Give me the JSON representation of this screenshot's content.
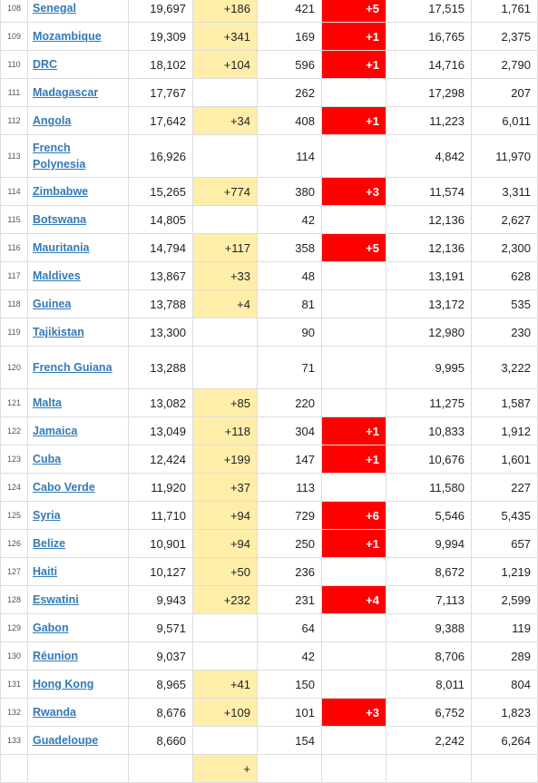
{
  "colors": {
    "new_cases_bg": "#FFEEAA",
    "new_deaths_bg": "#FF0000",
    "link": "#337ab7"
  },
  "rows": [
    {
      "rank": "108",
      "country": "Senegal",
      "total_cases": "19,697",
      "new_cases": "+186",
      "total_deaths": "421",
      "new_deaths": "+5",
      "recovered": "17,515",
      "active": "1,761"
    },
    {
      "rank": "109",
      "country": "Mozambique",
      "total_cases": "19,309",
      "new_cases": "+341",
      "total_deaths": "169",
      "new_deaths": "+1",
      "recovered": "16,765",
      "active": "2,375"
    },
    {
      "rank": "110",
      "country": "DRC",
      "total_cases": "18,102",
      "new_cases": "+104",
      "total_deaths": "596",
      "new_deaths": "+1",
      "recovered": "14,716",
      "active": "2,790"
    },
    {
      "rank": "111",
      "country": "Madagascar",
      "total_cases": "17,767",
      "new_cases": "",
      "total_deaths": "262",
      "new_deaths": "",
      "recovered": "17,298",
      "active": "207"
    },
    {
      "rank": "112",
      "country": "Angola",
      "total_cases": "17,642",
      "new_cases": "+34",
      "total_deaths": "408",
      "new_deaths": "+1",
      "recovered": "11,223",
      "active": "6,011"
    },
    {
      "rank": "113",
      "country": "French Polynesia",
      "total_cases": "16,926",
      "new_cases": "",
      "total_deaths": "114",
      "new_deaths": "",
      "recovered": "4,842",
      "active": "11,970",
      "tall": true
    },
    {
      "rank": "114",
      "country": "Zimbabwe",
      "total_cases": "15,265",
      "new_cases": "+774",
      "total_deaths": "380",
      "new_deaths": "+3",
      "recovered": "11,574",
      "active": "3,311"
    },
    {
      "rank": "115",
      "country": "Botswana",
      "total_cases": "14,805",
      "new_cases": "",
      "total_deaths": "42",
      "new_deaths": "",
      "recovered": "12,136",
      "active": "2,627"
    },
    {
      "rank": "116",
      "country": "Mauritania",
      "total_cases": "14,794",
      "new_cases": "+117",
      "total_deaths": "358",
      "new_deaths": "+5",
      "recovered": "12,136",
      "active": "2,300"
    },
    {
      "rank": "117",
      "country": "Maldives",
      "total_cases": "13,867",
      "new_cases": "+33",
      "total_deaths": "48",
      "new_deaths": "",
      "recovered": "13,191",
      "active": "628"
    },
    {
      "rank": "118",
      "country": "Guinea",
      "total_cases": "13,788",
      "new_cases": "+4",
      "total_deaths": "81",
      "new_deaths": "",
      "recovered": "13,172",
      "active": "535"
    },
    {
      "rank": "119",
      "country": "Tajikistan",
      "total_cases": "13,300",
      "new_cases": "",
      "total_deaths": "90",
      "new_deaths": "",
      "recovered": "12,980",
      "active": "230"
    },
    {
      "rank": "120",
      "country": "French Guiana",
      "total_cases": "13,288",
      "new_cases": "",
      "total_deaths": "71",
      "new_deaths": "",
      "recovered": "9,995",
      "active": "3,222",
      "tall": true
    },
    {
      "rank": "121",
      "country": "Malta",
      "total_cases": "13,082",
      "new_cases": "+85",
      "total_deaths": "220",
      "new_deaths": "",
      "recovered": "11,275",
      "active": "1,587"
    },
    {
      "rank": "122",
      "country": "Jamaica",
      "total_cases": "13,049",
      "new_cases": "+118",
      "total_deaths": "304",
      "new_deaths": "+1",
      "recovered": "10,833",
      "active": "1,912"
    },
    {
      "rank": "123",
      "country": "Cuba",
      "total_cases": "12,424",
      "new_cases": "+199",
      "total_deaths": "147",
      "new_deaths": "+1",
      "recovered": "10,676",
      "active": "1,601"
    },
    {
      "rank": "124",
      "country": "Cabo Verde",
      "total_cases": "11,920",
      "new_cases": "+37",
      "total_deaths": "113",
      "new_deaths": "",
      "recovered": "11,580",
      "active": "227"
    },
    {
      "rank": "125",
      "country": "Syria",
      "total_cases": "11,710",
      "new_cases": "+94",
      "total_deaths": "729",
      "new_deaths": "+6",
      "recovered": "5,546",
      "active": "5,435"
    },
    {
      "rank": "126",
      "country": "Belize",
      "total_cases": "10,901",
      "new_cases": "+94",
      "total_deaths": "250",
      "new_deaths": "+1",
      "recovered": "9,994",
      "active": "657"
    },
    {
      "rank": "127",
      "country": "Haiti",
      "total_cases": "10,127",
      "new_cases": "+50",
      "total_deaths": "236",
      "new_deaths": "",
      "recovered": "8,672",
      "active": "1,219"
    },
    {
      "rank": "128",
      "country": "Eswatini",
      "total_cases": "9,943",
      "new_cases": "+232",
      "total_deaths": "231",
      "new_deaths": "+4",
      "recovered": "7,113",
      "active": "2,599"
    },
    {
      "rank": "129",
      "country": "Gabon",
      "total_cases": "9,571",
      "new_cases": "",
      "total_deaths": "64",
      "new_deaths": "",
      "recovered": "9,388",
      "active": "119"
    },
    {
      "rank": "130",
      "country": "Réunion",
      "total_cases": "9,037",
      "new_cases": "",
      "total_deaths": "42",
      "new_deaths": "",
      "recovered": "8,706",
      "active": "289"
    },
    {
      "rank": "131",
      "country": "Hong Kong",
      "total_cases": "8,965",
      "new_cases": "+41",
      "total_deaths": "150",
      "new_deaths": "",
      "recovered": "8,011",
      "active": "804"
    },
    {
      "rank": "132",
      "country": "Rwanda",
      "total_cases": "8,676",
      "new_cases": "+109",
      "total_deaths": "101",
      "new_deaths": "+3",
      "recovered": "6,752",
      "active": "1,823"
    },
    {
      "rank": "133",
      "country": "Guadeloupe",
      "total_cases": "8,660",
      "new_cases": "",
      "total_deaths": "154",
      "new_deaths": "",
      "recovered": "2,242",
      "active": "6,264"
    },
    {
      "rank": "",
      "country": "",
      "total_cases": "",
      "new_cases": "+",
      "total_deaths": "",
      "new_deaths": "",
      "recovered": "",
      "active": ""
    }
  ]
}
